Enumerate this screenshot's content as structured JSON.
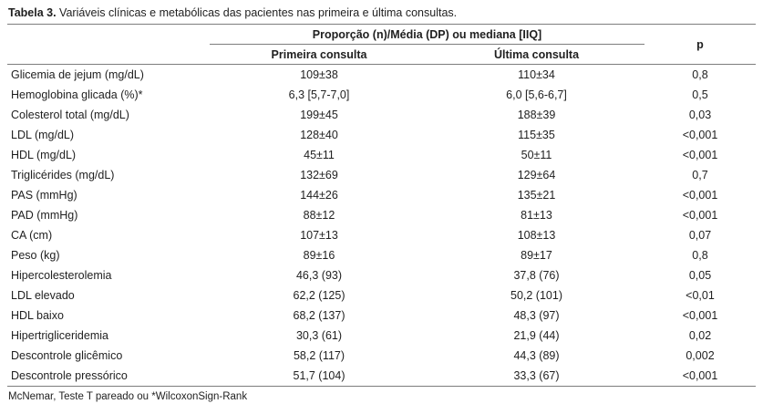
{
  "title": {
    "label": "Tabela 3.",
    "text": " Variáveis clínicas e metabólicas das pacientes nas primeira e última consultas."
  },
  "header": {
    "group": "Proporção (n)/Média (DP) ou mediana [IIQ]",
    "col_first": "Primeira consulta",
    "col_last": "Última consulta",
    "col_p": "p"
  },
  "rows": [
    {
      "variable": "Glicemia de jejum (mg/dL)",
      "first": "109±38",
      "last": "110±34",
      "p": "0,8"
    },
    {
      "variable": "Hemoglobina glicada (%)*",
      "first": "6,3 [5,7-7,0]",
      "last": "6,0 [5,6-6,7]",
      "p": "0,5"
    },
    {
      "variable": "Colesterol total (mg/dL)",
      "first": "199±45",
      "last": "188±39",
      "p": "0,03"
    },
    {
      "variable": "LDL (mg/dL)",
      "first": "128±40",
      "last": "115±35",
      "p": "<0,001"
    },
    {
      "variable": "HDL (mg/dL)",
      "first": "45±11",
      "last": "50±11",
      "p": "<0,001"
    },
    {
      "variable": "Triglicérides (mg/dL)",
      "first": "132±69",
      "last": "129±64",
      "p": "0,7"
    },
    {
      "variable": "PAS (mmHg)",
      "first": "144±26",
      "last": "135±21",
      "p": "<0,001"
    },
    {
      "variable": "PAD (mmHg)",
      "first": "88±12",
      "last": "81±13",
      "p": "<0,001"
    },
    {
      "variable": "CA (cm)",
      "first": "107±13",
      "last": "108±13",
      "p": "0,07"
    },
    {
      "variable": "Peso (kg)",
      "first": "89±16",
      "last": "89±17",
      "p": "0,8"
    },
    {
      "variable": "Hipercolesterolemia",
      "first": "46,3 (93)",
      "last": "37,8 (76)",
      "p": "0,05"
    },
    {
      "variable": "LDL elevado",
      "first": "62,2 (125)",
      "last": "50,2 (101)",
      "p": "<0,01"
    },
    {
      "variable": "HDL baixo",
      "first": "68,2 (137)",
      "last": "48,3 (97)",
      "p": "<0,001"
    },
    {
      "variable": "Hipertrigliceridemia",
      "first": "30,3 (61)",
      "last": "21,9 (44)",
      "p": "0,02"
    },
    {
      "variable": "Descontrole glicêmico",
      "first": "58,2 (117)",
      "last": "44,3 (89)",
      "p": "0,002"
    },
    {
      "variable": "Descontrole pressórico",
      "first": "51,7 (104)",
      "last": "33,3 (67)",
      "p": "<0,001"
    }
  ],
  "footnote": "McNemar, Teste T pareado ou *WilcoxonSign-Rank",
  "colors": {
    "text": "#1f1f1f",
    "line": "#7d7d7d",
    "background": "#ffffff"
  }
}
